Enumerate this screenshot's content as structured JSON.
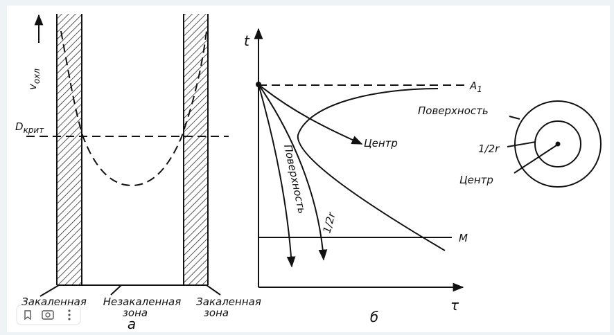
{
  "panel_a": {
    "y_axis_label": "v",
    "y_axis_subscript": "охл",
    "critical_label": "D",
    "critical_subscript": "крит",
    "left_zone": "Закаленная",
    "middle_zone": [
      "Незакаленная",
      "зона"
    ],
    "right_zone": [
      "Закаленная",
      "зона"
    ],
    "caption": "а"
  },
  "panel_b": {
    "y_axis_label": "t",
    "x_axis_label": "τ",
    "line_a": "A",
    "line_a_subscript": "1",
    "line_m": "M",
    "center_curve": "Центр",
    "surface_curve": "Поверхность",
    "half_radius_curve": "1/2r",
    "caption": "б"
  },
  "inset": {
    "surface": "Поверхность",
    "half_radius": "1/2r",
    "center": "Центр"
  }
}
